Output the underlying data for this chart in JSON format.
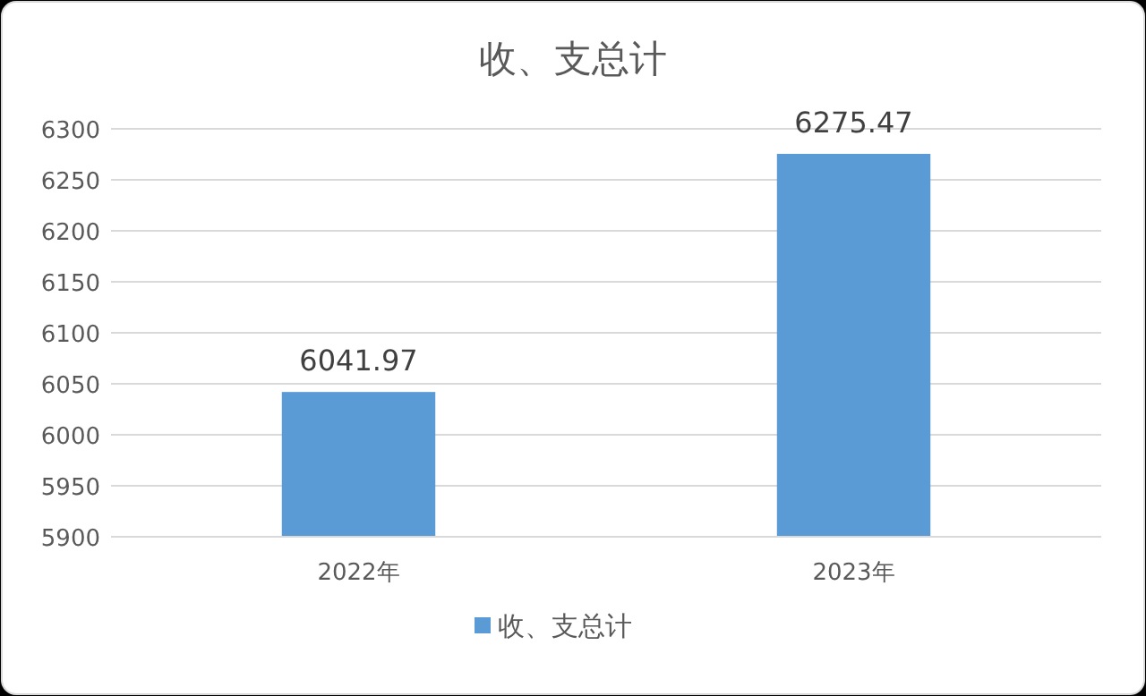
{
  "chart_data": {
    "type": "bar",
    "title": "收、支总计",
    "categories": [
      "2022年",
      "2023年"
    ],
    "series": [
      {
        "name": "收、支总计",
        "color": "#5b9bd5",
        "values": [
          6041.97,
          6275.47
        ]
      }
    ],
    "ylim": [
      5900,
      6300
    ],
    "yticks": [
      5900,
      5950,
      6000,
      6050,
      6100,
      6150,
      6200,
      6250,
      6300
    ],
    "grid": "y",
    "legend": "bottom",
    "data_labels": true
  }
}
